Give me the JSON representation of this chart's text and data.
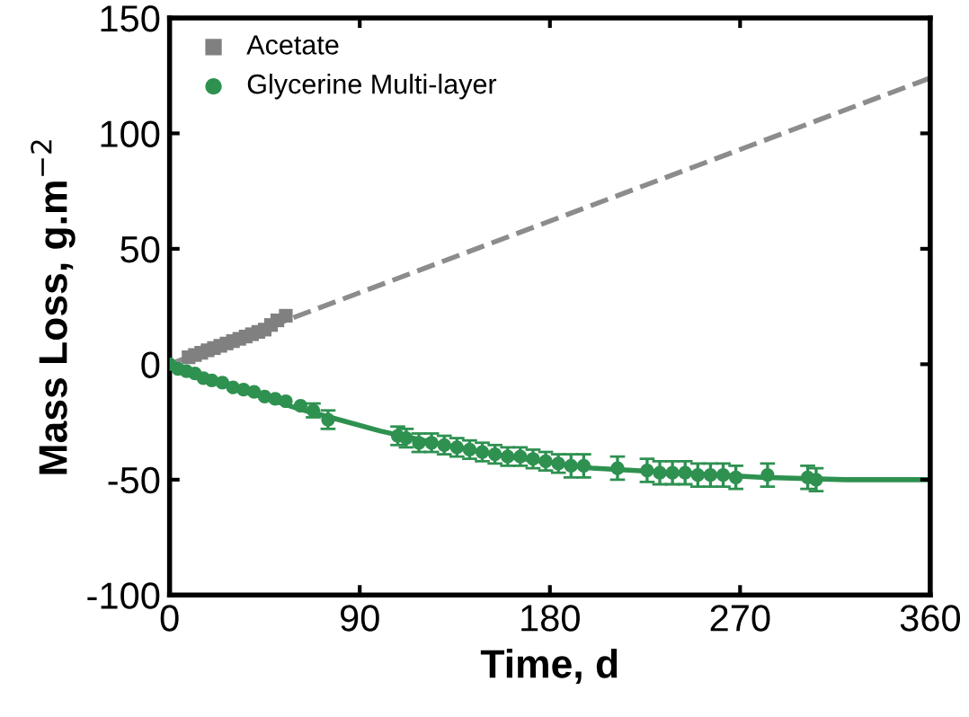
{
  "chart_data": {
    "type": "scatter",
    "xlabel": "Time, d",
    "ylabel": "Mass Loss, g.m$^{−2}$",
    "xlim": [
      0,
      360
    ],
    "ylim": [
      -100,
      150
    ],
    "xticks": [
      0,
      90,
      180,
      270,
      360
    ],
    "yticks": [
      -100,
      -50,
      0,
      50,
      100,
      150
    ],
    "grid": false,
    "legend": "top left",
    "series": [
      {
        "name": "Acetate",
        "marker": "square",
        "color": "#808080",
        "x": [
          9,
          12,
          15,
          18,
          21,
          24,
          27,
          30,
          33,
          36,
          39,
          42,
          45,
          48,
          51,
          55
        ],
        "values": [
          3,
          4,
          5,
          6,
          7,
          8,
          9,
          10,
          11,
          12,
          13,
          14,
          15,
          17,
          19,
          21
        ]
      },
      {
        "type": "line",
        "line_style": "dashed",
        "marker": "none",
        "color": "#8c8c8c",
        "x": [
          0,
          360
        ],
        "values": [
          0,
          124
        ]
      },
      {
        "name": "Glycerine Multi-layer",
        "marker": "circle",
        "color": "#2e9150",
        "x": [
          0,
          4,
          8,
          12,
          16,
          20,
          25,
          30,
          35,
          40,
          45,
          50,
          55,
          62,
          68,
          75,
          108,
          112,
          118,
          124,
          130,
          136,
          142,
          148,
          154,
          160,
          166,
          172,
          178,
          184,
          190,
          196,
          212,
          226,
          232,
          238,
          244,
          250,
          256,
          262,
          268,
          283,
          302,
          306
        ],
        "values": [
          0,
          -2,
          -3,
          -4,
          -6,
          -7,
          -8,
          -10,
          -11,
          -12,
          -14,
          -15,
          -16,
          -18,
          -20,
          -24,
          -31,
          -32,
          -34,
          -34,
          -35,
          -36,
          -37,
          -38,
          -39,
          -40,
          -40,
          -41,
          -42,
          -43,
          -44,
          -44,
          -45,
          -46,
          -47,
          -47,
          -47,
          -48,
          -48,
          -48,
          -49,
          -48,
          -49,
          -50
        ],
        "errors": [
          null,
          null,
          null,
          null,
          null,
          null,
          null,
          null,
          null,
          null,
          null,
          null,
          null,
          null,
          3,
          4,
          4,
          4,
          4,
          4,
          4,
          4,
          4,
          4,
          4,
          4,
          4,
          4,
          4,
          4,
          5,
          5,
          5,
          5,
          5,
          5,
          5,
          5,
          5,
          5,
          5,
          5,
          5,
          5
        ]
      },
      {
        "type": "line",
        "line_style": "solid",
        "marker": "none",
        "color": "#2e9150",
        "x": [
          0,
          20,
          40,
          60,
          80,
          100,
          130,
          160,
          200,
          240,
          280,
          320,
          360
        ],
        "values": [
          0,
          -7,
          -13,
          -19,
          -24,
          -29,
          -35,
          -40,
          -45,
          -47,
          -49,
          -50,
          -50
        ]
      }
    ]
  }
}
